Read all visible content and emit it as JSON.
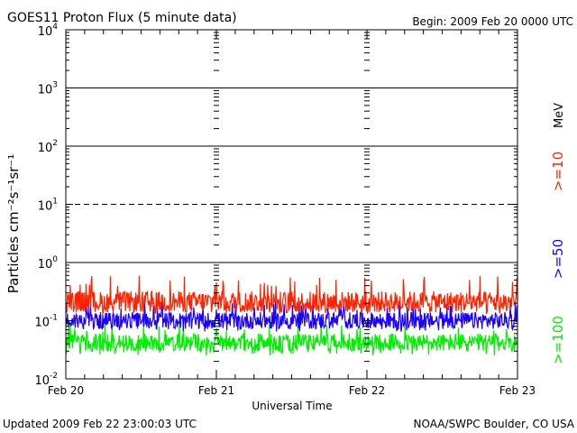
{
  "chart_data": {
    "type": "line",
    "title": "GOES11 Proton Flux (5 minute data)",
    "begin_label": "Begin: 2009 Feb 20 0000 UTC",
    "ylabel": "Particles cm⁻²s⁻¹sr⁻¹",
    "xlabel": "Universal Time",
    "y_scale": "log",
    "ylim": [
      0.01,
      10000
    ],
    "y_ticks": [
      {
        "base": "10",
        "exp": "4",
        "value": 10000
      },
      {
        "base": "10",
        "exp": "3",
        "value": 1000
      },
      {
        "base": "10",
        "exp": "2",
        "value": 100
      },
      {
        "base": "10",
        "exp": "1",
        "value": 10
      },
      {
        "base": "10",
        "exp": "0",
        "value": 1
      },
      {
        "base": "10",
        "exp": "-1",
        "value": 0.1
      },
      {
        "base": "10",
        "exp": "-2",
        "value": 0.01
      }
    ],
    "x_range_days": [
      0,
      3
    ],
    "x_ticks": [
      {
        "label": "Feb 20",
        "day": 0
      },
      {
        "label": "Feb 21",
        "day": 1
      },
      {
        "label": "Feb 22",
        "day": 2
      },
      {
        "label": "Feb 23",
        "day": 3
      }
    ],
    "threshold_lines": [
      {
        "value": 1000,
        "style": "solid"
      },
      {
        "value": 100,
        "style": "solid"
      },
      {
        "value": 10,
        "style": "dashed"
      },
      {
        "value": 1,
        "style": "solid"
      }
    ],
    "units_label": "MeV",
    "series": [
      {
        "name": ">=10",
        "color": "#ff2200",
        "baseline": 0.21,
        "range": [
          0.13,
          0.6
        ]
      },
      {
        "name": ">=50",
        "color": "#1a00ff",
        "baseline": 0.1,
        "range": [
          0.065,
          0.22
        ]
      },
      {
        "name": ">=100",
        "color": "#00ee00",
        "baseline": 0.042,
        "range": [
          0.025,
          0.09
        ]
      }
    ],
    "grid": false,
    "legend_position": "right"
  },
  "footer": {
    "updated": "Updated 2009 Feb 22 23:00:03 UTC",
    "source": "NOAA/SWPC Boulder, CO USA"
  }
}
